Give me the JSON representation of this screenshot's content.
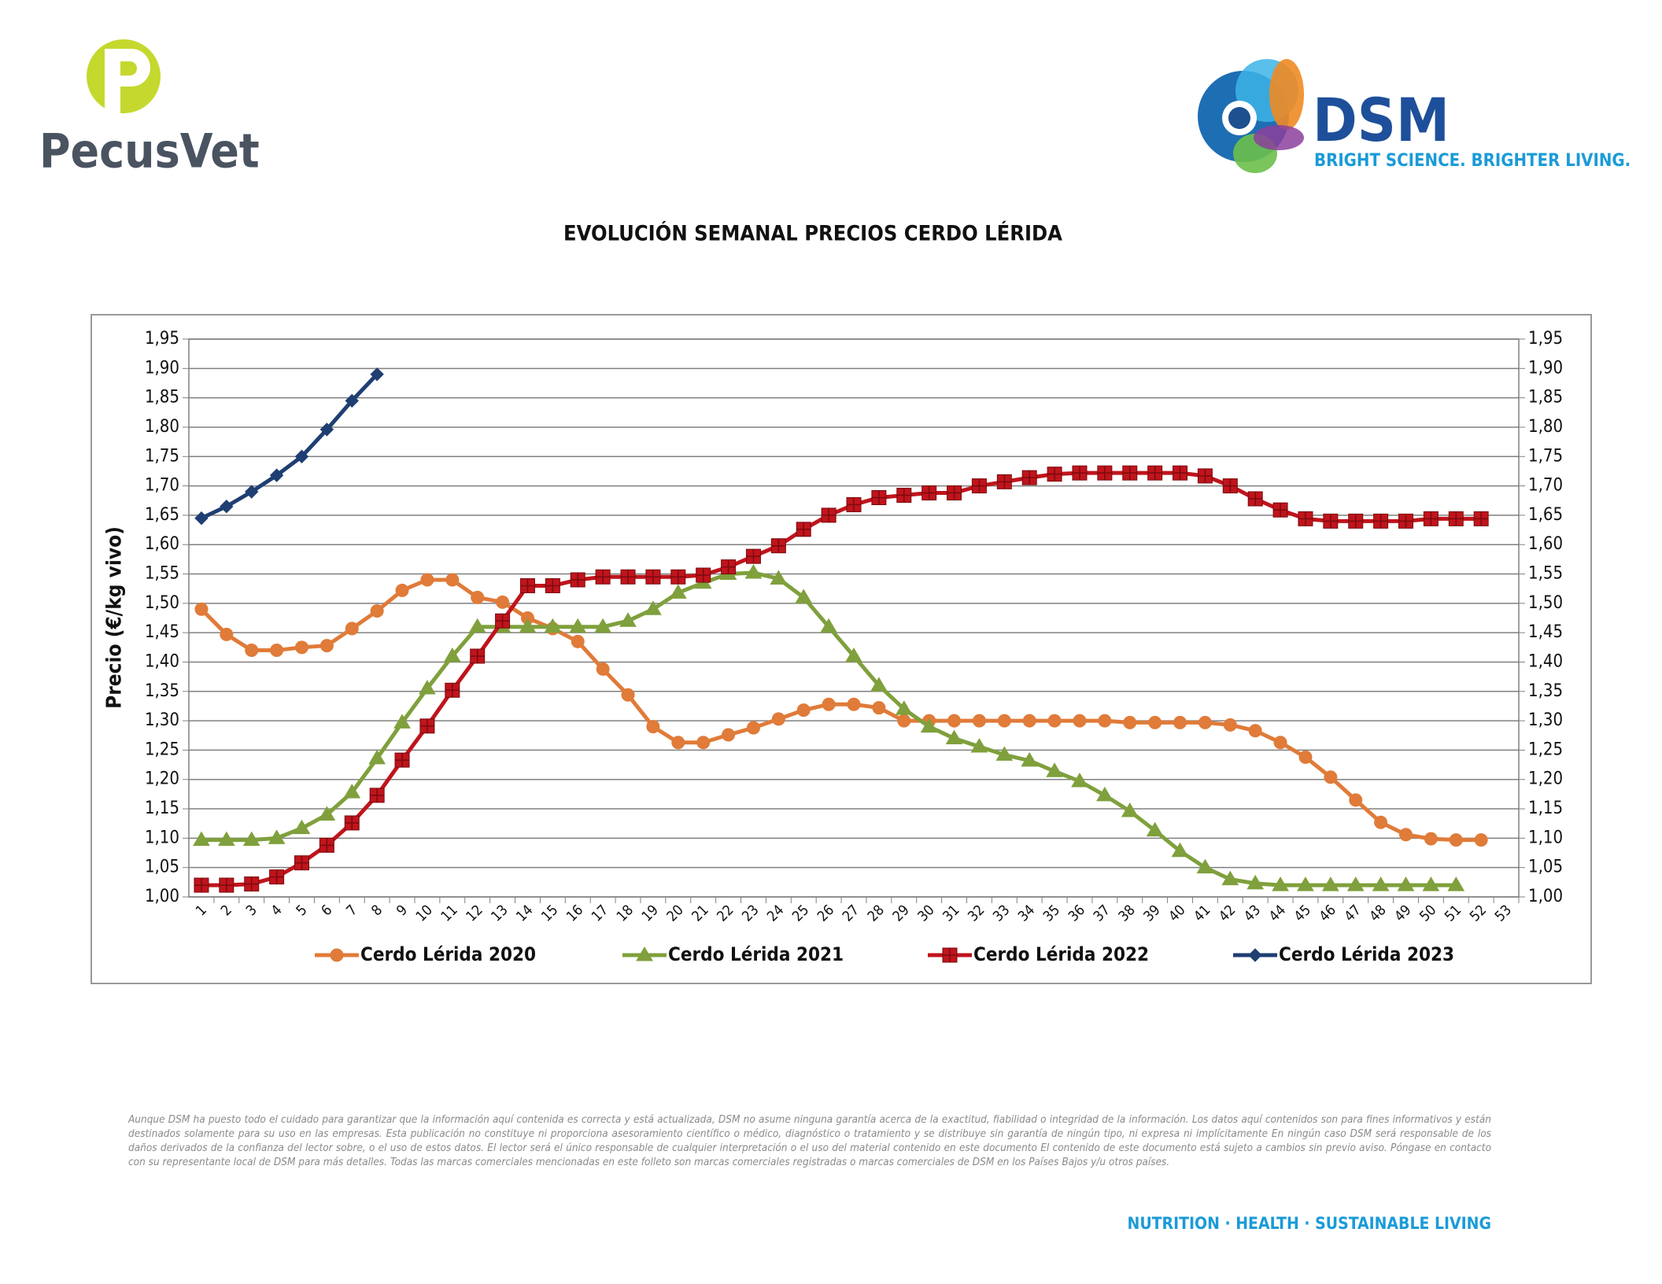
{
  "header": {
    "left_logo": "PecusVet",
    "right_logo": "DSM",
    "tagline": "BRIGHT SCIENCE. BRIGHTER LIVING."
  },
  "chart_data": {
    "type": "line",
    "title": "EVOLUCIÓN SEMANAL PRECIOS CERDO LÉRIDA",
    "y_label": "Precio (€/kg vivo)",
    "categories": [
      "1",
      "2",
      "3",
      "4",
      "5",
      "6",
      "7",
      "8",
      "9",
      "10",
      "11",
      "12",
      "13",
      "14",
      "15",
      "16",
      "17",
      "18",
      "19",
      "20",
      "21",
      "22",
      "23",
      "24",
      "25",
      "26",
      "27",
      "28",
      "29",
      "30",
      "31",
      "32",
      "33",
      "34",
      "35",
      "36",
      "37",
      "38",
      "39",
      "40",
      "41",
      "42",
      "43",
      "44",
      "45",
      "46",
      "47",
      "48",
      "49",
      "50",
      "51",
      "52",
      "53"
    ],
    "series": [
      {
        "name": "Cerdo Lérida 2020",
        "color": "#e07b39",
        "marker": "circle",
        "values": [
          1.49,
          1.447,
          1.42,
          1.42,
          1.425,
          1.428,
          1.457,
          1.487,
          1.522,
          1.54,
          1.54,
          1.51,
          1.502,
          1.475,
          1.457,
          1.435,
          1.388,
          1.344,
          1.29,
          1.263,
          1.263,
          1.276,
          1.288,
          1.303,
          1.318,
          1.328,
          1.328,
          1.322,
          1.3,
          1.3,
          1.3,
          1.3,
          1.3,
          1.3,
          1.3,
          1.3,
          1.3,
          1.297,
          1.297,
          1.297,
          1.297,
          1.293,
          1.283,
          1.263,
          1.238,
          1.204,
          1.165,
          1.127,
          1.106,
          1.099,
          1.097,
          1.097,
          null
        ]
      },
      {
        "name": "Cerdo Lérida 2021",
        "color": "#7fa03c",
        "marker": "triangle",
        "values": [
          1.097,
          1.097,
          1.097,
          1.1,
          1.117,
          1.14,
          1.178,
          1.236,
          1.297,
          1.355,
          1.41,
          1.46,
          1.46,
          1.46,
          1.46,
          1.46,
          1.46,
          1.47,
          1.49,
          1.518,
          1.535,
          1.55,
          1.552,
          1.542,
          1.51,
          1.46,
          1.41,
          1.36,
          1.32,
          1.29,
          1.27,
          1.256,
          1.242,
          1.232,
          1.214,
          1.197,
          1.173,
          1.146,
          1.113,
          1.078,
          1.05,
          1.03,
          1.023,
          1.02,
          1.02,
          1.02,
          1.02,
          1.02,
          1.02,
          1.02,
          1.02,
          null,
          null
        ]
      },
      {
        "name": "Cerdo Lérida 2022",
        "color": "#c0141c",
        "marker": "square",
        "values": [
          1.02,
          1.02,
          1.022,
          1.034,
          1.058,
          1.088,
          1.126,
          1.173,
          1.233,
          1.291,
          1.352,
          1.41,
          1.47,
          1.53,
          1.53,
          1.54,
          1.545,
          1.545,
          1.545,
          1.545,
          1.548,
          1.562,
          1.58,
          1.598,
          1.626,
          1.65,
          1.668,
          1.68,
          1.684,
          1.688,
          1.688,
          1.7,
          1.707,
          1.714,
          1.72,
          1.722,
          1.722,
          1.722,
          1.722,
          1.722,
          1.717,
          1.7,
          1.678,
          1.659,
          1.644,
          1.64,
          1.64,
          1.64,
          1.64,
          1.644,
          1.644,
          1.644,
          null
        ]
      },
      {
        "name": "Cerdo Lérida 2023",
        "color": "#1f3f73",
        "marker": "diamond",
        "values": [
          1.645,
          1.665,
          1.69,
          1.718,
          1.75,
          1.796,
          1.845,
          1.89,
          null,
          null,
          null,
          null,
          null,
          null,
          null,
          null,
          null,
          null,
          null,
          null,
          null,
          null,
          null,
          null,
          null,
          null,
          null,
          null,
          null,
          null,
          null,
          null,
          null,
          null,
          null,
          null,
          null,
          null,
          null,
          null,
          null,
          null,
          null,
          null,
          null,
          null,
          null,
          null,
          null,
          null,
          null,
          null,
          null
        ]
      }
    ],
    "ylim": [
      1.0,
      1.95
    ],
    "yticks": [
      {
        "value": 1.0,
        "label": "1,00"
      },
      {
        "value": 1.05,
        "label": "1,05"
      },
      {
        "value": 1.1,
        "label": "1,10"
      },
      {
        "value": 1.15,
        "label": "1,15"
      },
      {
        "value": 1.2,
        "label": "1,20"
      },
      {
        "value": 1.25,
        "label": "1,25"
      },
      {
        "value": 1.3,
        "label": "1,30"
      },
      {
        "value": 1.35,
        "label": "1,35"
      },
      {
        "value": 1.4,
        "label": "1,40"
      },
      {
        "value": 1.45,
        "label": "1,45"
      },
      {
        "value": 1.5,
        "label": "1,50"
      },
      {
        "value": 1.55,
        "label": "1,55"
      },
      {
        "value": 1.6,
        "label": "1,60"
      },
      {
        "value": 1.65,
        "label": "1,65"
      },
      {
        "value": 1.7,
        "label": "1,70"
      },
      {
        "value": 1.75,
        "label": "1,75"
      },
      {
        "value": 1.8,
        "label": "1,80"
      },
      {
        "value": 1.85,
        "label": "1,85"
      },
      {
        "value": 1.9,
        "label": "1,90"
      },
      {
        "value": 1.95,
        "label": "1,95"
      }
    ],
    "y2lim": [
      1.0,
      1.95
    ],
    "y2ticks": [
      {
        "value": 1.0,
        "label": "1,00"
      },
      {
        "value": 1.05,
        "label": "1,05"
      },
      {
        "value": 1.1,
        "label": "1,10"
      },
      {
        "value": 1.15,
        "label": "1,15"
      },
      {
        "value": 1.2,
        "label": "1,20"
      },
      {
        "value": 1.25,
        "label": "1,25"
      },
      {
        "value": 1.3,
        "label": "1,30"
      },
      {
        "value": 1.35,
        "label": "1,35"
      },
      {
        "value": 1.4,
        "label": "1,40"
      },
      {
        "value": 1.45,
        "label": "1,45"
      },
      {
        "value": 1.5,
        "label": "1,50"
      },
      {
        "value": 1.55,
        "label": "1,55"
      },
      {
        "value": 1.6,
        "label": "1,60"
      },
      {
        "value": 1.65,
        "label": "1,65"
      },
      {
        "value": 1.7,
        "label": "1,70"
      },
      {
        "value": 1.75,
        "label": "1,75"
      },
      {
        "value": 1.8,
        "label": "1,80"
      },
      {
        "value": 1.85,
        "label": "1,85"
      },
      {
        "value": 1.9,
        "label": "1,90"
      },
      {
        "value": 1.95,
        "label": "1,95"
      }
    ],
    "grid": true,
    "legend": "bottom"
  },
  "disclaimer": "Aunque DSM ha puesto todo el cuidado para garantizar que la información aquí contenida es correcta y está actualizada, DSM no asume ninguna garantía acerca de la exactitud, fiabilidad o integridad de la información. Los datos aquí contenidos son para fines informativos y están destinados solamente para su uso en las empresas. Esta publicación no constituye ni proporciona asesoramiento científico o médico, diagnóstico o tratamiento y se distribuye sin garantía de ningún tipo, ni expresa ni implícitamente En ningún caso DSM será responsable de los daños derivados de la confianza del lector sobre, o el uso de estos datos. El lector será el único responsable de cualquier interpretación o el uso del material contenido en este documento El contenido de este documento está sujeto a cambios sin previo aviso. Póngase en contacto con su representante local de DSM para más detalles. Todas las marcas comerciales mencionadas en este folleto son marcas comerciales registradas o marcas comerciales de DSM en los Países Bajos y/u otros países.",
  "footer": "NUTRITION · HEALTH · SUSTAINABLE LIVING"
}
